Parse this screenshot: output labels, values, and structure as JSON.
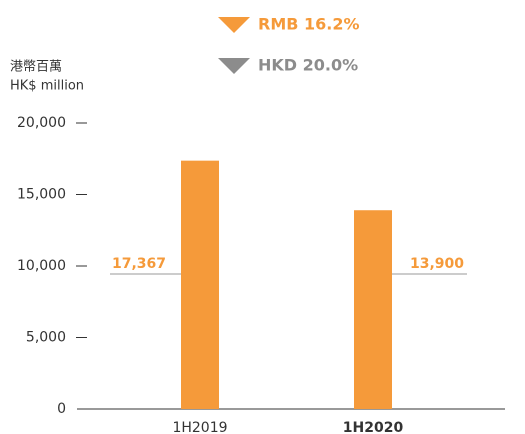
{
  "chart_data": {
    "type": "bar",
    "annotations": [
      {
        "text": "RMB 16.2%",
        "color": "#f59a3a"
      },
      {
        "text": "HKD 20.0%",
        "color": "#8c8c8c"
      }
    ],
    "y_axis_label": [
      "港幣百萬",
      "HK$ million"
    ],
    "categories": [
      "1H2019",
      "1H2020"
    ],
    "values": [
      17367,
      13900
    ],
    "value_labels": [
      "17,367",
      "13,900"
    ],
    "color": "#f59a3a",
    "ylim": [
      0,
      20000
    ],
    "yticks": [
      0,
      {
        "value": 5000,
        "label": "5,000"
      },
      {
        "value": 10000,
        "label": "10,000"
      },
      {
        "value": 15000,
        "label": "15,000"
      },
      {
        "value": 20000,
        "label": "20,000"
      }
    ]
  }
}
